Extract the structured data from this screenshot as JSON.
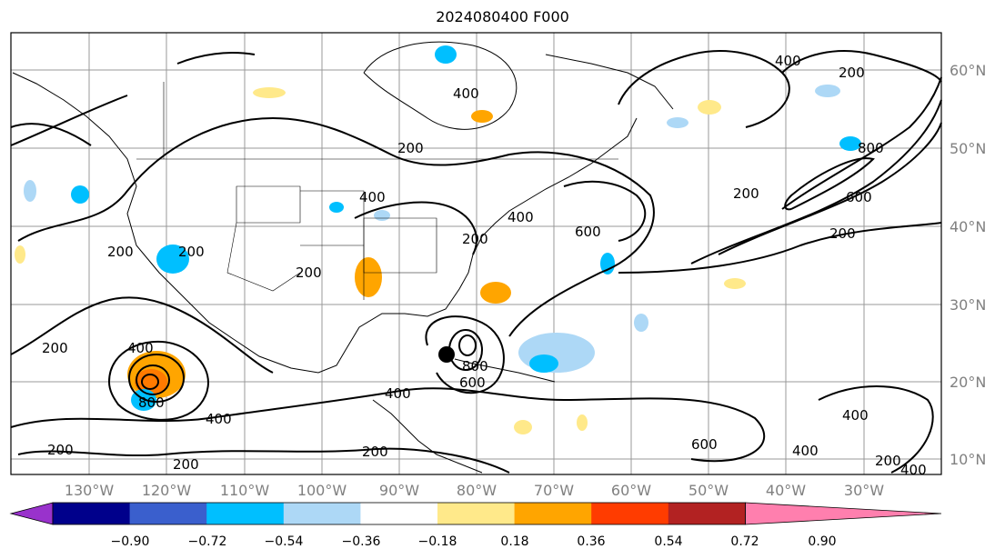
{
  "title": "2024080400 F000",
  "lon_labels": [
    "130°W",
    "120°W",
    "110°W",
    "100°W",
    "90°W",
    "80°W",
    "70°W",
    "60°W",
    "50°W",
    "40°W",
    "30°W"
  ],
  "lat_labels": [
    "60°N",
    "50°N",
    "40°N",
    "30°N",
    "20°N",
    "10°N"
  ],
  "contour_labels": [
    "200",
    "400",
    "600",
    "800"
  ],
  "colorbar": {
    "ticks": [
      "−0.90",
      "−0.72",
      "−0.54",
      "−0.36",
      "−0.18",
      "0.18",
      "0.36",
      "0.54",
      "0.72",
      "0.90"
    ],
    "colors": [
      "#9932cc",
      "#00008b",
      "#3a5fcd",
      "#00bfff",
      "#add8f6",
      "#ffffff",
      "#ffe98a",
      "#ffa500",
      "#ff3c00",
      "#b22222",
      "#ff7fae"
    ]
  },
  "storm_marker_icon": "hurricane-center-dot"
}
